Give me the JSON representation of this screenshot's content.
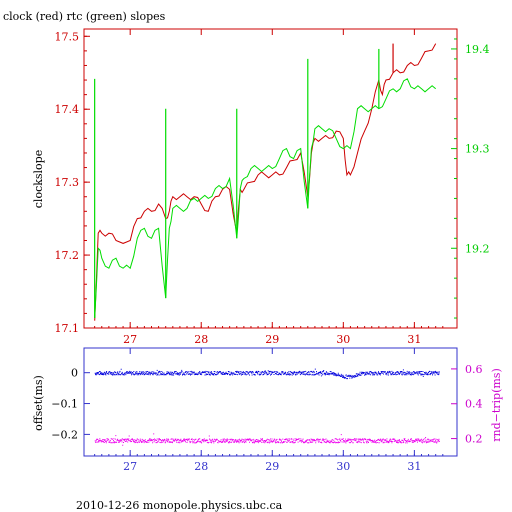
{
  "title": "clock (red) rtc (green) slopes",
  "footer": "2010-12-26  monopole.physics.ubc.ca",
  "chart_data": [
    {
      "type": "line",
      "xlim": [
        26.35,
        31.6
      ],
      "x_ticks": [
        "27",
        "28",
        "29",
        "30",
        "31"
      ],
      "x_tick_values": [
        27,
        28,
        29,
        30,
        31
      ],
      "ylabel_left": "clockslope",
      "ylim_left": [
        17.1,
        17.51
      ],
      "y_ticks_left": [
        "17.1",
        "17.2",
        "17.3",
        "17.4",
        "17.5"
      ],
      "ylim_right": [
        19.12,
        19.42
      ],
      "y_ticks_right": [
        "19.2",
        "19.3",
        "19.4"
      ],
      "colors": {
        "clock": "#cc0000",
        "rtc": "#00dd00",
        "axis_left": "#cc0000",
        "axis_right": "#00cc00",
        "frame": "#cc0000"
      },
      "series": [
        {
          "name": "clock",
          "axis": "left",
          "x": [
            26.5,
            26.55,
            26.6,
            26.7,
            26.8,
            27.0,
            27.1,
            27.2,
            27.3,
            27.4,
            27.5,
            27.55,
            27.6,
            27.7,
            27.8,
            27.9,
            28.0,
            28.1,
            28.2,
            28.3,
            28.4,
            28.5,
            28.55,
            28.6,
            28.7,
            28.8,
            28.9,
            29.0,
            29.1,
            29.2,
            29.3,
            29.4,
            29.5,
            29.55,
            29.6,
            29.7,
            29.8,
            29.9,
            30.0,
            30.05,
            30.1,
            30.2,
            30.3,
            30.4,
            30.5,
            30.55,
            30.6,
            30.7,
            30.8,
            30.9,
            31.0,
            31.1,
            31.2,
            31.3
          ],
          "y": [
            17.11,
            17.23,
            17.23,
            17.23,
            17.22,
            17.22,
            17.25,
            17.26,
            17.26,
            17.27,
            17.25,
            17.26,
            17.28,
            17.28,
            17.28,
            17.28,
            17.27,
            17.26,
            17.28,
            17.29,
            17.29,
            17.23,
            17.29,
            17.29,
            17.3,
            17.31,
            17.31,
            17.31,
            17.31,
            17.32,
            17.33,
            17.34,
            17.28,
            17.34,
            17.36,
            17.36,
            17.36,
            17.37,
            17.36,
            17.31,
            17.31,
            17.34,
            17.37,
            17.4,
            17.44,
            17.42,
            17.44,
            17.45,
            17.45,
            17.46,
            17.46,
            17.47,
            17.48,
            17.49
          ]
        },
        {
          "name": "rtc",
          "axis": "right",
          "x": [
            26.5,
            26.55,
            26.6,
            26.7,
            26.8,
            26.9,
            27.0,
            27.1,
            27.2,
            27.3,
            27.4,
            27.5,
            27.55,
            27.6,
            27.7,
            27.8,
            27.9,
            28.0,
            28.1,
            28.2,
            28.3,
            28.4,
            28.5,
            28.55,
            28.6,
            28.7,
            28.8,
            28.9,
            29.0,
            29.1,
            29.2,
            29.3,
            29.4,
            29.5,
            29.55,
            29.6,
            29.7,
            29.8,
            29.9,
            30.0,
            30.1,
            30.2,
            30.3,
            30.4,
            30.5,
            30.6,
            30.7,
            30.8,
            30.9,
            31.0,
            31.1,
            31.2,
            31.3
          ],
          "y": [
            19.13,
            19.2,
            19.19,
            19.18,
            19.19,
            19.18,
            19.18,
            19.21,
            19.22,
            19.21,
            19.22,
            19.15,
            19.22,
            19.24,
            19.24,
            19.24,
            19.25,
            19.25,
            19.25,
            19.26,
            19.26,
            19.27,
            19.21,
            19.26,
            19.27,
            19.28,
            19.28,
            19.28,
            19.28,
            19.29,
            19.3,
            19.29,
            19.3,
            19.24,
            19.3,
            19.32,
            19.32,
            19.32,
            19.31,
            19.3,
            19.3,
            19.34,
            19.34,
            19.34,
            19.34,
            19.35,
            19.36,
            19.36,
            19.37,
            19.36,
            19.36,
            19.36,
            19.36
          ]
        }
      ],
      "spikes": [
        {
          "series": "rtc",
          "x": 26.5,
          "y": 19.37
        },
        {
          "series": "rtc",
          "x": 27.5,
          "y": 19.34
        },
        {
          "series": "rtc",
          "x": 28.5,
          "y": 19.34
        },
        {
          "series": "rtc",
          "x": 29.5,
          "y": 19.39
        },
        {
          "series": "rtc",
          "x": 30.5,
          "y": 19.4
        },
        {
          "series": "clock",
          "x": 30.7,
          "y": 17.49
        }
      ]
    },
    {
      "type": "scatter",
      "xlim": [
        26.35,
        31.6
      ],
      "x_ticks": [
        "27",
        "28",
        "29",
        "30",
        "31"
      ],
      "x_tick_values": [
        27,
        28,
        29,
        30,
        31
      ],
      "ylabel_left": "offset(ms)",
      "ylim_left": [
        -0.27,
        0.08
      ],
      "y_ticks_left": [
        "0",
        "−0.1",
        "−0.2"
      ],
      "y_tick_values_left": [
        0,
        -0.1,
        -0.2
      ],
      "ylabel_right": "rnd−trip(ms)",
      "ylim_right": [
        0.1,
        0.72
      ],
      "y_ticks_right": [
        "0.6",
        "0.4",
        "0.2"
      ],
      "y_tick_values_right": [
        0.6,
        0.4,
        0.2
      ],
      "colors": {
        "offset": "#0000dd",
        "rndtrip": "#ee00ee",
        "axis_left": "#000000",
        "axis_right": "#cc00cc",
        "frame": "#3333cc"
      },
      "series": [
        {
          "name": "offset",
          "axis": "left",
          "x_range": [
            26.5,
            31.35
          ],
          "center": 0.0,
          "spread": 0.006,
          "dip": {
            "x": 30.05,
            "depth": 0.012
          }
        },
        {
          "name": "rnd-trip",
          "axis": "right",
          "x_range": [
            26.5,
            31.35
          ],
          "center": 0.19,
          "spread": 0.012
        }
      ]
    }
  ]
}
